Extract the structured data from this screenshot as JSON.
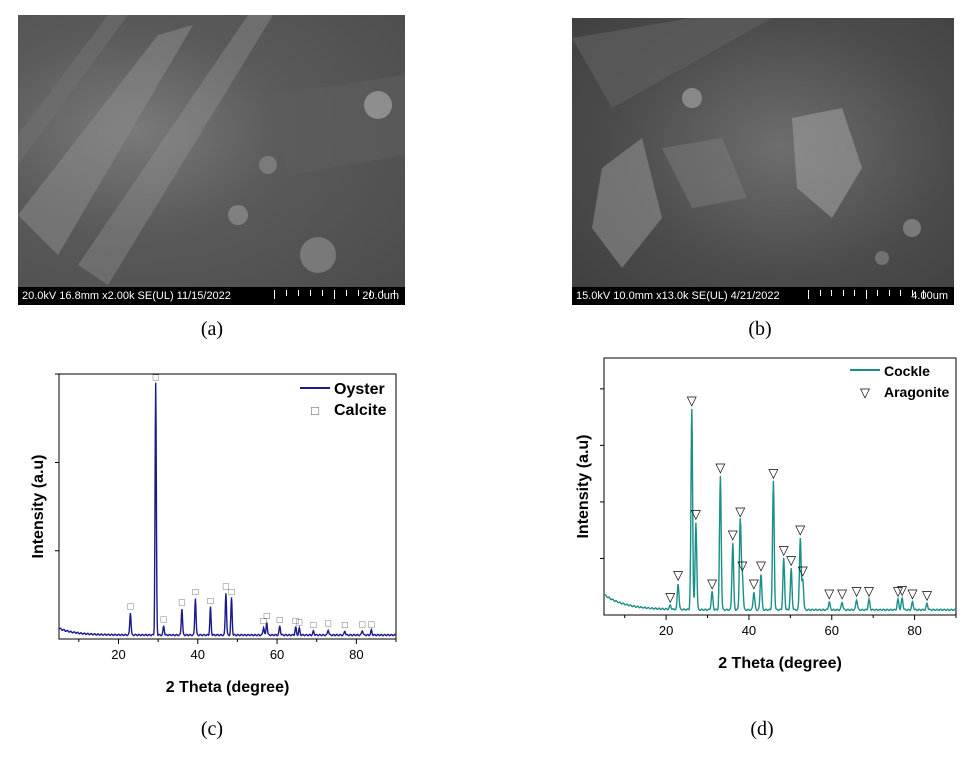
{
  "panels": {
    "a": {
      "caption": "(a)",
      "sem_info": "20.0kV 16.8mm x2.00k SE(UL) 11/15/2022",
      "scale_label": "20.0um"
    },
    "b": {
      "caption": "(b)",
      "sem_info": "15.0kV 10.0mm x13.0k SE(UL) 4/21/2022",
      "scale_label": "4.00um"
    },
    "c": {
      "caption": "(c)"
    },
    "d": {
      "caption": "(d)"
    }
  },
  "chart_data": [
    {
      "type": "line",
      "panel": "c",
      "xlabel": "2 Theta (degree)",
      "ylabel": "Intensity (a.u)",
      "xlim": [
        5,
        90
      ],
      "ylim": [
        0,
        100
      ],
      "x_ticks": [
        20,
        40,
        60,
        80
      ],
      "legend": {
        "position": "top-right",
        "entries": [
          {
            "label": "Oyster",
            "marker": "line",
            "color": "#1a1a8c"
          },
          {
            "label": "Calcite",
            "marker": "□",
            "color": "#555555"
          }
        ]
      },
      "series": [
        {
          "name": "Oyster",
          "color": "#1a1a8c",
          "baseline": 1.5,
          "peaks": [
            {
              "x": 23.0,
              "y": 8.5
            },
            {
              "x": 29.4,
              "y": 95
            },
            {
              "x": 31.4,
              "y": 3.5
            },
            {
              "x": 36.0,
              "y": 10
            },
            {
              "x": 39.4,
              "y": 14
            },
            {
              "x": 43.2,
              "y": 10.5
            },
            {
              "x": 47.1,
              "y": 16
            },
            {
              "x": 48.5,
              "y": 14
            },
            {
              "x": 56.6,
              "y": 3
            },
            {
              "x": 57.4,
              "y": 5
            },
            {
              "x": 60.7,
              "y": 3.5
            },
            {
              "x": 64.7,
              "y": 3
            },
            {
              "x": 65.6,
              "y": 2.5
            },
            {
              "x": 69.2,
              "y": 1.5
            },
            {
              "x": 72.9,
              "y": 2
            },
            {
              "x": 77.1,
              "y": 1.5
            },
            {
              "x": 81.5,
              "y": 1.8
            },
            {
              "x": 83.8,
              "y": 1.8
            }
          ]
        }
      ],
      "marker_symbol": "□"
    },
    {
      "type": "line",
      "panel": "d",
      "xlabel": "2 Theta (degree)",
      "ylabel": "Intensity (a.u)",
      "xlim": [
        5,
        90
      ],
      "ylim": [
        0,
        100
      ],
      "x_ticks": [
        20,
        40,
        60,
        80
      ],
      "legend": {
        "position": "top-right",
        "entries": [
          {
            "label": "Cockle",
            "marker": "line",
            "color": "#1a8f88"
          },
          {
            "label": "Aragonite",
            "marker": "▽",
            "color": "#000000"
          }
        ]
      },
      "series": [
        {
          "name": "Cockle",
          "color": "#1a8f88",
          "baseline": 2,
          "peaks": [
            {
              "x": 21.0,
              "y": 1.5
            },
            {
              "x": 22.9,
              "y": 10
            },
            {
              "x": 26.2,
              "y": 78
            },
            {
              "x": 27.2,
              "y": 34
            },
            {
              "x": 31.1,
              "y": 7
            },
            {
              "x": 33.1,
              "y": 52
            },
            {
              "x": 36.1,
              "y": 26
            },
            {
              "x": 37.9,
              "y": 35
            },
            {
              "x": 38.4,
              "y": 14
            },
            {
              "x": 41.2,
              "y": 7
            },
            {
              "x": 42.9,
              "y": 14
            },
            {
              "x": 45.9,
              "y": 50
            },
            {
              "x": 48.4,
              "y": 20
            },
            {
              "x": 50.2,
              "y": 16
            },
            {
              "x": 52.4,
              "y": 28
            },
            {
              "x": 53.0,
              "y": 12
            },
            {
              "x": 59.4,
              "y": 3
            },
            {
              "x": 62.5,
              "y": 3
            },
            {
              "x": 66.0,
              "y": 4
            },
            {
              "x": 69.0,
              "y": 4
            },
            {
              "x": 76.0,
              "y": 4
            },
            {
              "x": 77.0,
              "y": 4.5
            },
            {
              "x": 79.5,
              "y": 3
            },
            {
              "x": 83.0,
              "y": 2.5
            }
          ]
        }
      ],
      "marker_symbol": "▽"
    }
  ]
}
